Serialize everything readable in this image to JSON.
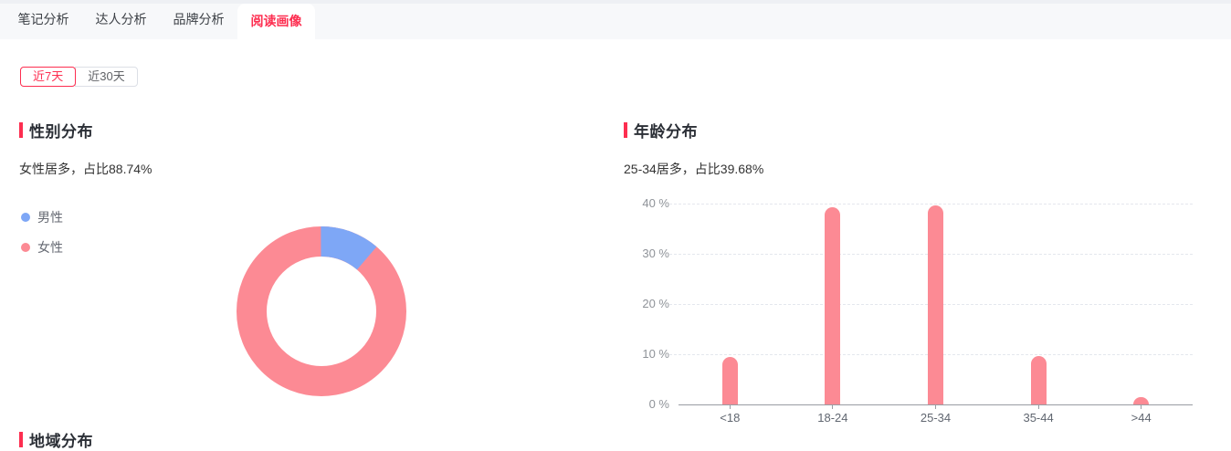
{
  "accent_color": "#fd2e50",
  "tabs": {
    "items": [
      {
        "label": "笔记分析",
        "active": false
      },
      {
        "label": "达人分析",
        "active": false
      },
      {
        "label": "品牌分析",
        "active": false
      },
      {
        "label": "阅读画像",
        "active": true
      }
    ]
  },
  "time_range": {
    "options": [
      {
        "label": "近7天",
        "selected": true
      },
      {
        "label": "近30天",
        "selected": false
      }
    ]
  },
  "gender_section": {
    "title": "性别分布",
    "subtitle": "女性居多，占比88.74%",
    "legend": [
      {
        "label": "男性",
        "color": "#7ea7f6"
      },
      {
        "label": "女性",
        "color": "#fc8a94"
      }
    ]
  },
  "age_section": {
    "title": "年龄分布",
    "subtitle": "25-34居多，占比39.68%"
  },
  "region_section": {
    "title": "地域分布"
  },
  "chart_data": [
    {
      "type": "pie",
      "title": "性别分布",
      "donut": true,
      "start_at": "top",
      "direction": "clockwise",
      "legend_position": "left",
      "series": [
        {
          "name": "男性",
          "value": 11.26,
          "color": "#7ea7f6"
        },
        {
          "name": "女性",
          "value": 88.74,
          "color": "#fc8a94"
        }
      ]
    },
    {
      "type": "bar",
      "title": "年龄分布",
      "categories": [
        "<18",
        "18-24",
        "25-34",
        "35-44",
        ">44"
      ],
      "values": [
        9.4,
        39.2,
        39.68,
        9.6,
        1.4
      ],
      "highlight": {
        "category": "25-34",
        "value": 39.68
      },
      "yticks": [
        "0 %",
        "10 %",
        "20 %",
        "30 %",
        "40 %"
      ],
      "ylim": [
        0,
        40
      ],
      "bar_color": "#fc8a94",
      "grid": "dashed-horizontal",
      "legend": "none"
    }
  ]
}
